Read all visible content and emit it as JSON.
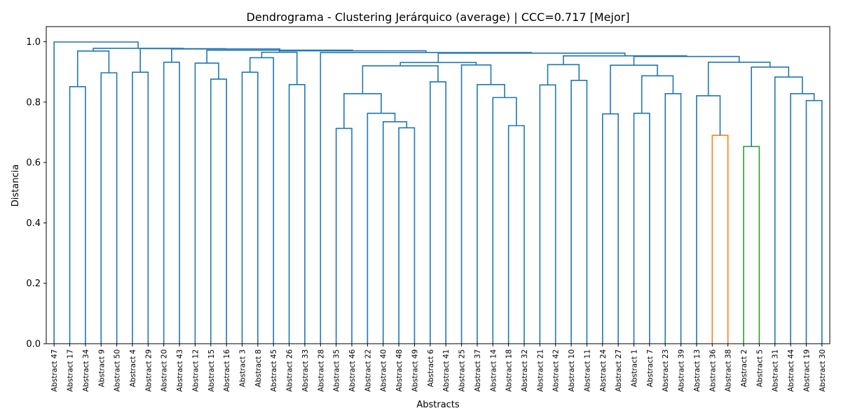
{
  "chart_data": {
    "type": "dendrogram",
    "title": "Dendrograma - Clustering Jerárquico (average) | CCC=0.717 [Mejor]",
    "xlabel": "Abstracts",
    "ylabel": "Distancia",
    "ylim": [
      0,
      1.05
    ],
    "yticks": [
      0.0,
      0.2,
      0.4,
      0.6,
      0.8,
      1.0
    ],
    "ytick_labels": [
      "0.0",
      "0.2",
      "0.4",
      "0.6",
      "0.8",
      "1.0"
    ],
    "grid": false,
    "colors": {
      "above_threshold": "#1f77b4",
      "cluster_1": "#ff7f0e",
      "cluster_2": "#2ca02c"
    },
    "leaves": [
      "Abstract 47",
      "Abstract 17",
      "Abstract 34",
      "Abstract 9",
      "Abstract 50",
      "Abstract 4",
      "Abstract 29",
      "Abstract 20",
      "Abstract 43",
      "Abstract 12",
      "Abstract 15",
      "Abstract 16",
      "Abstract 3",
      "Abstract 8",
      "Abstract 45",
      "Abstract 26",
      "Abstract 33",
      "Abstract 28",
      "Abstract 35",
      "Abstract 46",
      "Abstract 22",
      "Abstract 40",
      "Abstract 48",
      "Abstract 49",
      "Abstract 6",
      "Abstract 41",
      "Abstract 25",
      "Abstract 37",
      "Abstract 14",
      "Abstract 18",
      "Abstract 32",
      "Abstract 21",
      "Abstract 42",
      "Abstract 10",
      "Abstract 11",
      "Abstract 24",
      "Abstract 27",
      "Abstract 1",
      "Abstract 7",
      "Abstract 23",
      "Abstract 39",
      "Abstract 13",
      "Abstract 36",
      "Abstract 38",
      "Abstract 2",
      "Abstract 5",
      "Abstract 31",
      "Abstract 44",
      "Abstract 19",
      "Abstract 30"
    ],
    "merges": [
      {
        "left": "Abstract 17",
        "right": "Abstract 34",
        "height": 0.851,
        "color": "above_threshold"
      },
      {
        "left": "Abstract 9",
        "right": "Abstract 50",
        "height": 0.897,
        "color": "above_threshold"
      },
      {
        "left": "Abstract 4",
        "right": "Abstract 29",
        "height": 0.899,
        "color": "above_threshold"
      },
      {
        "left": "Abstract 20",
        "right": "Abstract 43",
        "height": 0.932,
        "color": "above_threshold"
      },
      {
        "left": "Abstract 15",
        "right": "Abstract 16",
        "height": 0.876,
        "color": "above_threshold"
      },
      {
        "left": "Abstract 3",
        "right": "Abstract 8",
        "height": 0.899,
        "color": "above_threshold"
      },
      {
        "left": "Abstract 26",
        "right": "Abstract 33",
        "height": 0.858,
        "color": "above_threshold"
      },
      {
        "left": "Abstract 35",
        "right": "Abstract 46",
        "height": 0.713,
        "color": "above_threshold"
      },
      {
        "left": "Abstract 48",
        "right": "Abstract 49",
        "height": 0.715,
        "color": "above_threshold"
      },
      {
        "left": "Abstract 6",
        "right": "Abstract 41",
        "height": 0.867,
        "color": "above_threshold"
      },
      {
        "left": "Abstract 18",
        "right": "Abstract 32",
        "height": 0.722,
        "color": "above_threshold"
      },
      {
        "left": "Abstract 21",
        "right": "Abstract 42",
        "height": 0.857,
        "color": "above_threshold"
      },
      {
        "left": "Abstract 10",
        "right": "Abstract 11",
        "height": 0.872,
        "color": "above_threshold"
      },
      {
        "left": "Abstract 24",
        "right": "Abstract 27",
        "height": 0.761,
        "color": "above_threshold"
      },
      {
        "left": "Abstract 1",
        "right": "Abstract 7",
        "height": 0.763,
        "color": "above_threshold"
      },
      {
        "left": "Abstract 23",
        "right": "Abstract 39",
        "height": 0.828,
        "color": "above_threshold"
      },
      {
        "left": "Abstract 36",
        "right": "Abstract 38",
        "height": 0.69,
        "color": "cluster_1"
      },
      {
        "left": "Abstract 2",
        "right": "Abstract 5",
        "height": 0.653,
        "color": "cluster_2"
      },
      {
        "left": "Abstract 19",
        "right": "Abstract 30",
        "height": 0.805,
        "color": "above_threshold"
      }
    ]
  }
}
